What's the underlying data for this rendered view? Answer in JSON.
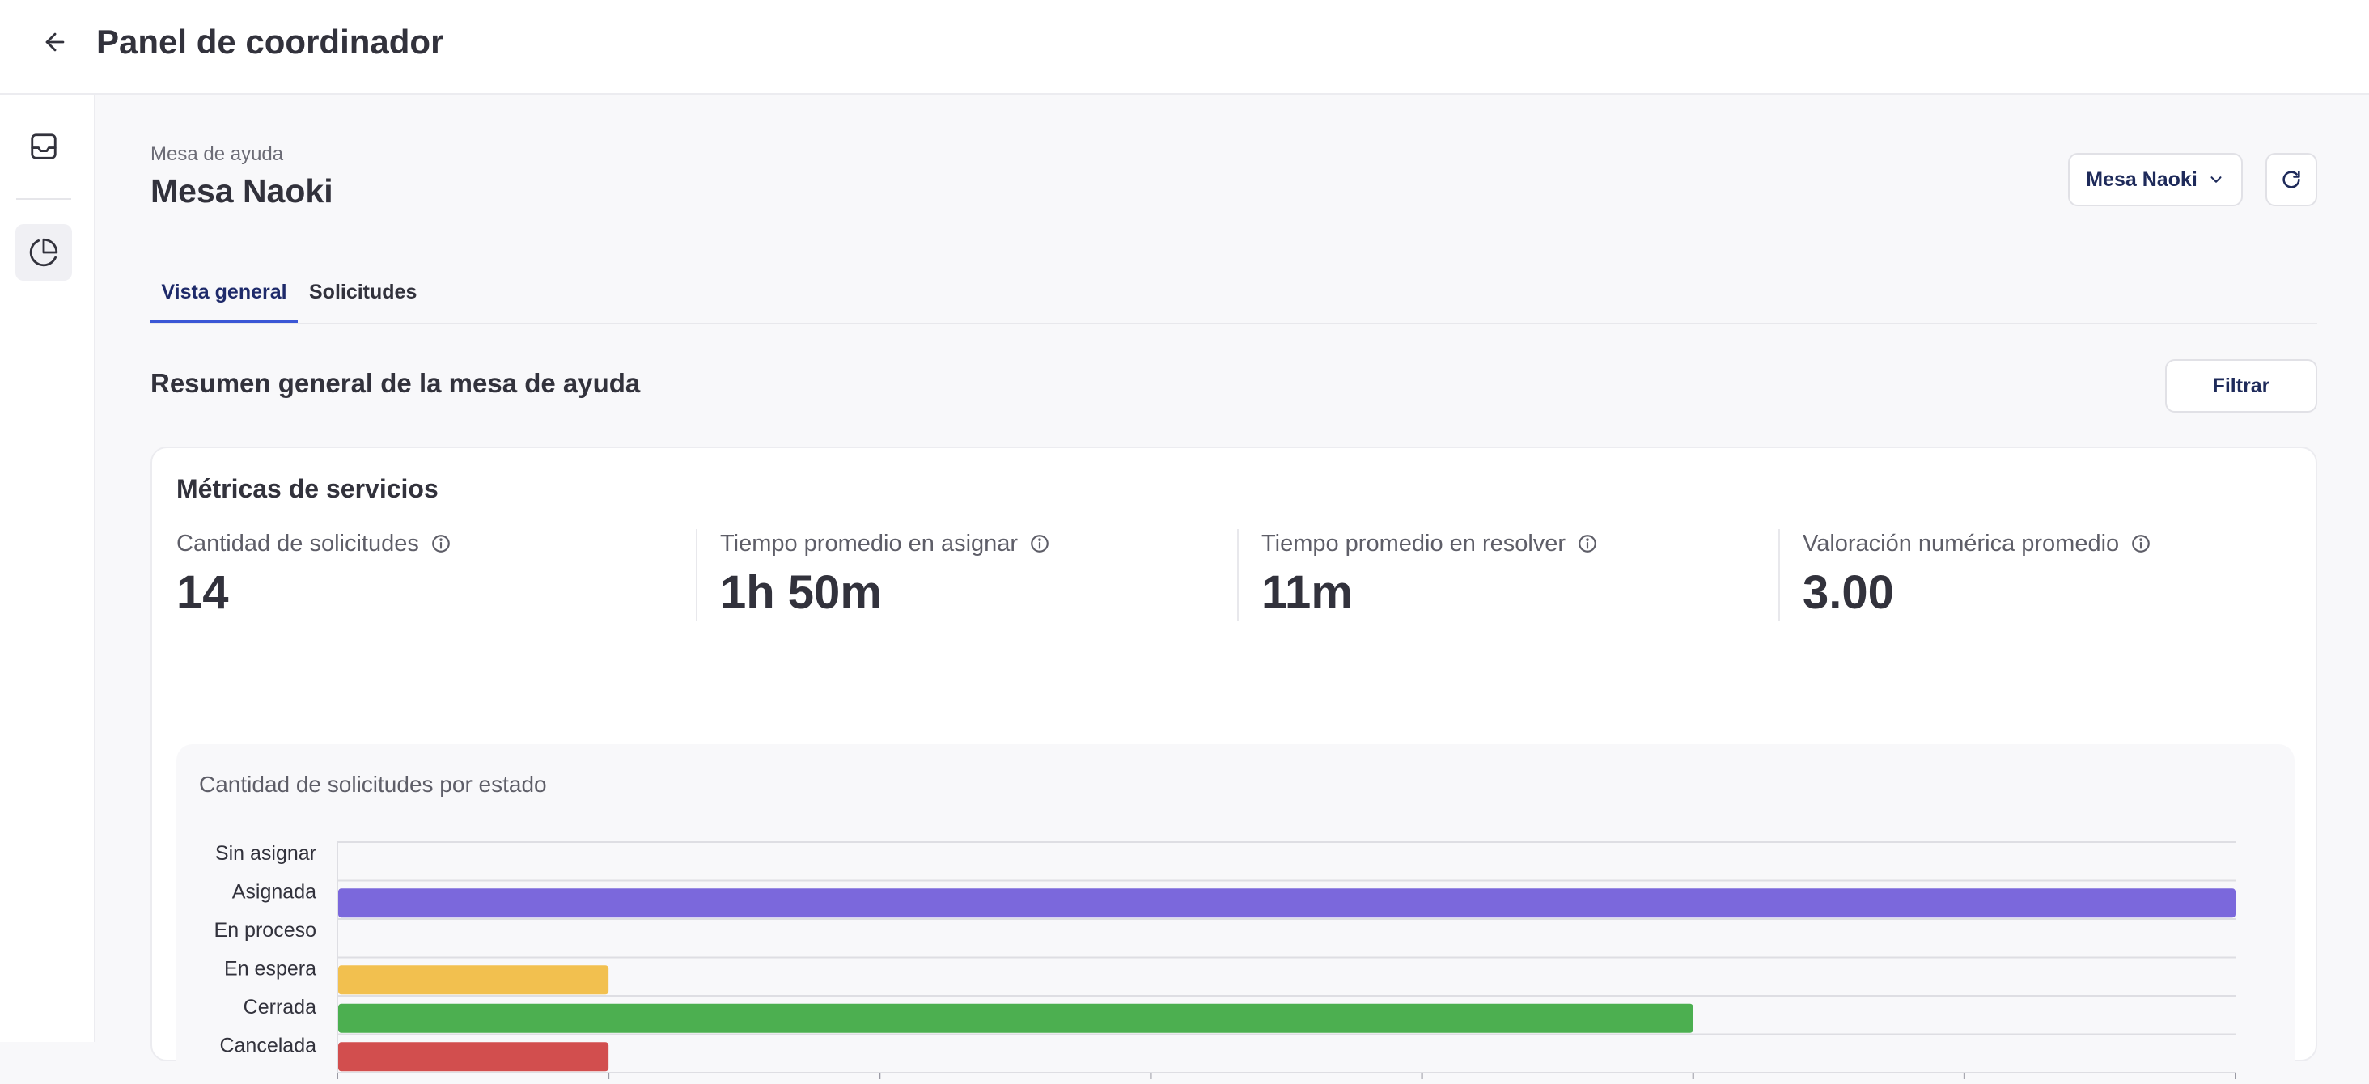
{
  "header": {
    "title": "Panel de coordinador",
    "back_icon": "arrow-left-icon"
  },
  "sidebar": {
    "items": [
      {
        "icon": "inbox-icon",
        "active": false
      },
      {
        "icon": "pie-chart-icon",
        "active": true
      }
    ]
  },
  "desk": {
    "subtitle": "Mesa de ayuda",
    "title": "Mesa Naoki",
    "selector_value": "Mesa Naoki"
  },
  "tabs": [
    {
      "label": "Vista general",
      "active": true
    },
    {
      "label": "Solicitudes",
      "active": false
    }
  ],
  "section": {
    "title": "Resumen general de la mesa de ayuda",
    "filter_label": "Filtrar"
  },
  "metrics_card": {
    "title": "Métricas de servicios",
    "metrics": [
      {
        "label": "Cantidad de solicitudes",
        "value": "14"
      },
      {
        "label": "Tiempo promedio en asignar",
        "value": "1h 50m"
      },
      {
        "label": "Tiempo promedio en resolver",
        "value": "11m"
      },
      {
        "label": "Valoración numérica promedio",
        "value": "3.00"
      }
    ]
  },
  "colors": {
    "accent": "#3b57d6"
  },
  "chart_data": {
    "type": "bar",
    "orientation": "horizontal",
    "title": "Cantidad de solicitudes por estado",
    "categories": [
      "Sin asignar",
      "Asignada",
      "En proceso",
      "En espera",
      "Cerrada",
      "Cancelada"
    ],
    "values": [
      0,
      7,
      0,
      1,
      5,
      1
    ],
    "colors": [
      "#9a9aa4",
      "#7b68dc",
      "#5b8ad6",
      "#f2c04f",
      "#4caf50",
      "#d24e4e"
    ],
    "xlim": [
      0,
      7
    ],
    "xticks": [
      "0",
      "1",
      "2",
      "3",
      "4",
      "5",
      "6",
      "7"
    ],
    "grid": true
  }
}
